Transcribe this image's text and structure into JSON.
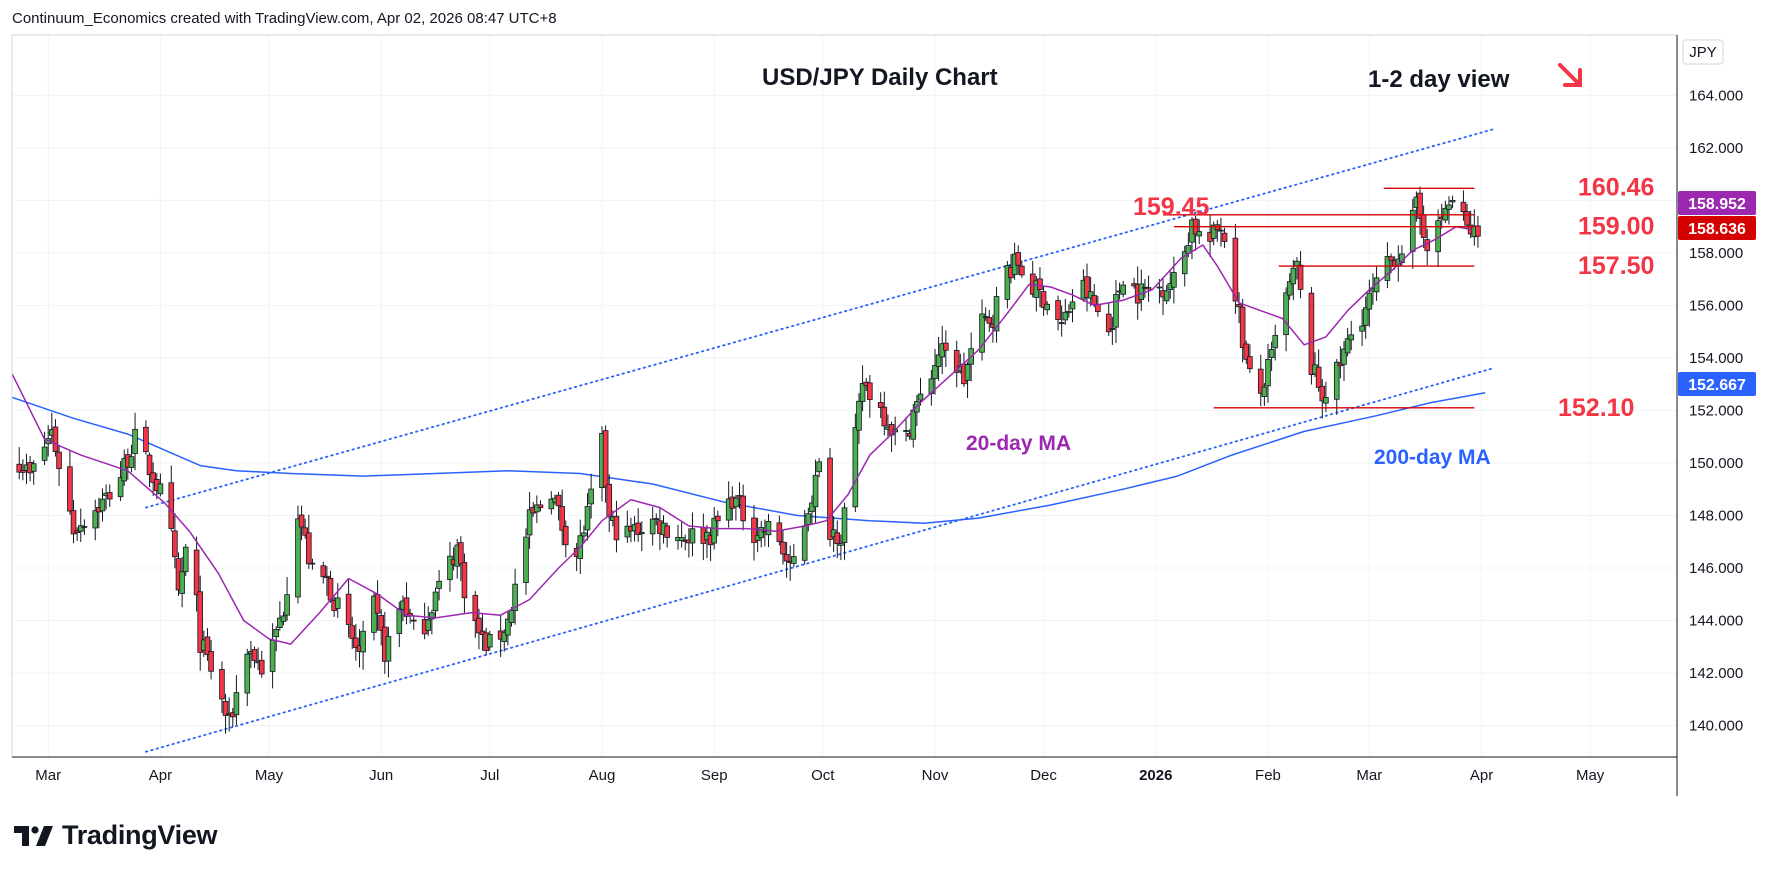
{
  "header": {
    "text": "Continuum_Economics created with TradingView.com, Apr 02, 2026 08:47 UTC+8"
  },
  "footer": {
    "brand": "TradingView"
  },
  "chart_data": {
    "type": "candlestick",
    "title": "USD/JPY Daily Chart",
    "subtitle": "1-2 day view",
    "currency": "JPY",
    "ylim": [
      138.8,
      166.3
    ],
    "yticks": [
      "140.000",
      "142.000",
      "144.000",
      "146.000",
      "148.000",
      "150.000",
      "152.000",
      "154.000",
      "156.000",
      "158.000",
      "160.000",
      "162.000",
      "164.000"
    ],
    "xlim": [
      -37,
      423
    ],
    "xticks": [
      {
        "label": "Mar",
        "day": -27
      },
      {
        "label": "Apr",
        "day": 4
      },
      {
        "label": "May",
        "day": 34
      },
      {
        "label": "Jun",
        "day": 65
      },
      {
        "label": "Jul",
        "day": 95
      },
      {
        "label": "Aug",
        "day": 126
      },
      {
        "label": "Sep",
        "day": 157
      },
      {
        "label": "Oct",
        "day": 187
      },
      {
        "label": "Nov",
        "day": 218
      },
      {
        "label": "Dec",
        "day": 248
      },
      {
        "label": "2026",
        "day": 279
      },
      {
        "label": "Feb",
        "day": 310
      },
      {
        "label": "Mar",
        "day": 338
      },
      {
        "label": "Apr",
        "day": 369
      },
      {
        "label": "May",
        "day": 399
      }
    ],
    "price_badges": [
      {
        "value": "158.952",
        "color": "#9c27b0"
      },
      {
        "value": "158.636",
        "color": "#d50000"
      },
      {
        "value": "152.667",
        "color": "#2962ff"
      }
    ],
    "levels": [
      {
        "label": "160.46",
        "value": 160.46,
        "from": 342,
        "to": 367
      },
      {
        "label": "159.45",
        "value": 159.45,
        "from": 281,
        "to": 367
      },
      {
        "label": "159.00",
        "value": 159.0,
        "from": 284,
        "to": 367
      },
      {
        "label": "157.50",
        "value": 157.5,
        "from": 313,
        "to": 367
      },
      {
        "label": "152.10",
        "value": 152.1,
        "from": 295,
        "to": 367
      }
    ],
    "channel": [
      {
        "name": "upper",
        "from": [
          0,
          148.3
        ],
        "to": [
          372,
          162.7
        ]
      },
      {
        "name": "lower",
        "from": [
          0,
          139.0
        ],
        "to": [
          372,
          153.6
        ]
      }
    ],
    "annotations": [
      {
        "text": "20-day MA",
        "color": "#9c27b0"
      },
      {
        "text": "200-day MA",
        "color": "#2962ff"
      }
    ],
    "ma20": [
      [
        -37,
        153.4
      ],
      [
        -28,
        150.9
      ],
      [
        -18,
        150.3
      ],
      [
        -5,
        149.7
      ],
      [
        5,
        148.5
      ],
      [
        12,
        147.4
      ],
      [
        20,
        145.8
      ],
      [
        27,
        144.0
      ],
      [
        34,
        143.3
      ],
      [
        40,
        143.1
      ],
      [
        48,
        144.3
      ],
      [
        56,
        145.6
      ],
      [
        64,
        145.0
      ],
      [
        72,
        144.2
      ],
      [
        80,
        144.1
      ],
      [
        90,
        144.3
      ],
      [
        98,
        144.2
      ],
      [
        106,
        144.8
      ],
      [
        114,
        146.0
      ],
      [
        120,
        146.8
      ],
      [
        126,
        147.8
      ],
      [
        134,
        148.6
      ],
      [
        142,
        148.3
      ],
      [
        150,
        147.6
      ],
      [
        158,
        147.5
      ],
      [
        166,
        147.5
      ],
      [
        174,
        147.4
      ],
      [
        182,
        147.6
      ],
      [
        188,
        147.8
      ],
      [
        194,
        148.8
      ],
      [
        200,
        150.3
      ],
      [
        206,
        151.1
      ],
      [
        214,
        152.3
      ],
      [
        222,
        153.3
      ],
      [
        230,
        154.3
      ],
      [
        238,
        155.7
      ],
      [
        244,
        156.8
      ],
      [
        250,
        156.7
      ],
      [
        256,
        156.4
      ],
      [
        262,
        156.0
      ],
      [
        270,
        156.2
      ],
      [
        278,
        156.6
      ],
      [
        286,
        157.8
      ],
      [
        292,
        158.3
      ],
      [
        296,
        157.5
      ],
      [
        302,
        156.1
      ],
      [
        308,
        155.8
      ],
      [
        314,
        155.5
      ],
      [
        320,
        154.5
      ],
      [
        326,
        154.8
      ],
      [
        332,
        155.8
      ],
      [
        338,
        156.6
      ],
      [
        344,
        157.3
      ],
      [
        350,
        158.1
      ],
      [
        356,
        158.5
      ],
      [
        362,
        159.0
      ],
      [
        366,
        158.9
      ]
    ],
    "ma200": [
      [
        -37,
        152.5
      ],
      [
        -20,
        151.7
      ],
      [
        -5,
        151.1
      ],
      [
        5,
        150.5
      ],
      [
        15,
        149.9
      ],
      [
        25,
        149.7
      ],
      [
        40,
        149.6
      ],
      [
        60,
        149.5
      ],
      [
        80,
        149.6
      ],
      [
        100,
        149.7
      ],
      [
        120,
        149.6
      ],
      [
        140,
        149.2
      ],
      [
        160,
        148.5
      ],
      [
        180,
        148.0
      ],
      [
        200,
        147.8
      ],
      [
        215,
        147.7
      ],
      [
        230,
        147.9
      ],
      [
        250,
        148.4
      ],
      [
        270,
        149.0
      ],
      [
        285,
        149.5
      ],
      [
        300,
        150.3
      ],
      [
        320,
        151.2
      ],
      [
        340,
        151.8
      ],
      [
        355,
        152.3
      ],
      [
        370,
        152.67
      ]
    ],
    "ohlc_series": [
      {
        "name": "USD/JPY",
        "anchors": [
          [
            -37,
            150.5
          ],
          [
            -32,
            149.5
          ],
          [
            -26,
            151.2
          ],
          [
            -20,
            147.5
          ],
          [
            -12,
            148.5
          ],
          [
            -8,
            149.2
          ],
          [
            -3,
            150.9
          ],
          [
            2,
            149.5
          ],
          [
            6,
            148.2
          ],
          [
            9,
            145.0
          ],
          [
            12,
            147.4
          ],
          [
            15,
            143.2
          ],
          [
            19,
            141.8
          ],
          [
            23,
            140.0
          ],
          [
            28,
            143.0
          ],
          [
            33,
            142.0
          ],
          [
            38,
            144.5
          ],
          [
            42,
            148.2
          ],
          [
            46,
            145.8
          ],
          [
            50,
            145.5
          ],
          [
            55,
            143.8
          ],
          [
            59,
            142.7
          ],
          [
            63,
            144.5
          ],
          [
            66,
            142.8
          ],
          [
            71,
            144.8
          ],
          [
            75,
            143.2
          ],
          [
            80,
            145.0
          ],
          [
            86,
            146.8
          ],
          [
            89,
            144.5
          ],
          [
            93,
            143.2
          ],
          [
            96,
            143.0
          ],
          [
            100,
            144.0
          ],
          [
            106,
            147.8
          ],
          [
            112,
            149.0
          ],
          [
            115,
            147.6
          ],
          [
            119,
            146.5
          ],
          [
            122,
            148.0
          ],
          [
            126,
            150.7
          ],
          [
            128,
            147.8
          ],
          [
            132,
            147.2
          ],
          [
            140,
            147.8
          ],
          [
            148,
            147.2
          ],
          [
            156,
            147.3
          ],
          [
            162,
            148.7
          ],
          [
            168,
            147.4
          ],
          [
            174,
            147.5
          ],
          [
            178,
            145.8
          ],
          [
            182,
            147.8
          ],
          [
            186,
            149.8
          ],
          [
            189,
            147.5
          ],
          [
            192,
            147.3
          ],
          [
            195,
            149.8
          ],
          [
            198,
            153.1
          ],
          [
            202,
            152.3
          ],
          [
            206,
            151.4
          ],
          [
            209,
            150.4
          ],
          [
            212,
            152.0
          ],
          [
            215,
            152.6
          ],
          [
            219,
            154.2
          ],
          [
            223,
            154.0
          ],
          [
            226,
            153.2
          ],
          [
            230,
            155.2
          ],
          [
            234,
            155.6
          ],
          [
            238,
            157.4
          ],
          [
            241,
            157.6
          ],
          [
            244,
            156.8
          ],
          [
            249,
            156.2
          ],
          [
            253,
            155.2
          ],
          [
            258,
            156.9
          ],
          [
            262,
            156.0
          ],
          [
            266,
            155.0
          ],
          [
            270,
            157.2
          ],
          [
            274,
            156.5
          ],
          [
            280,
            156.7
          ],
          [
            285,
            157.0
          ],
          [
            289,
            159.2
          ],
          [
            293,
            158.2
          ],
          [
            297,
            159.1
          ],
          [
            300,
            157.5
          ],
          [
            304,
            153.8
          ],
          [
            307,
            152.2
          ],
          [
            311,
            154.0
          ],
          [
            314,
            155.9
          ],
          [
            318,
            157.5
          ],
          [
            321,
            154.0
          ],
          [
            325,
            152.6
          ],
          [
            329,
            153.4
          ],
          [
            333,
            154.9
          ],
          [
            337,
            155.9
          ],
          [
            341,
            157.0
          ],
          [
            344,
            157.7
          ],
          [
            348,
            158.4
          ],
          [
            351,
            159.7
          ],
          [
            355,
            158.1
          ],
          [
            359,
            159.7
          ],
          [
            362,
            160.1
          ],
          [
            365,
            158.9
          ],
          [
            368,
            158.64
          ]
        ]
      }
    ]
  }
}
